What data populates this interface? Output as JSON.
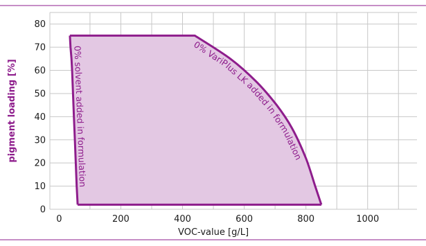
{
  "chart_data": {
    "type": "area",
    "title": "",
    "xlabel": "VOC-value [g/L]",
    "ylabel": "pigment loading [%]",
    "xlim": [
      -30,
      1160
    ],
    "ylim": [
      0,
      85
    ],
    "x_ticks": [
      0,
      200,
      400,
      600,
      800,
      1000
    ],
    "y_ticks": [
      0,
      10,
      20,
      30,
      40,
      50,
      60,
      70,
      80
    ],
    "x_tick_labels": [
      "0",
      "200",
      "400",
      "600",
      "800",
      "1000"
    ],
    "y_tick_labels": [
      "0",
      "10",
      "20",
      "30",
      "40",
      "50",
      "60",
      "70",
      "80"
    ],
    "grid": true,
    "series": [
      {
        "name": "0% solvent added in formulation",
        "x": [
          60,
          57,
          54,
          51,
          48,
          45,
          42,
          40,
          37,
          35
        ],
        "y": [
          2,
          10,
          20,
          30,
          40,
          50,
          60,
          65,
          70,
          75
        ]
      },
      {
        "name": "0% VariPlus LK added in formulation",
        "x": [
          35,
          440,
          555,
          640,
          705,
          755,
          800,
          830,
          850
        ],
        "y": [
          75,
          75,
          65,
          55,
          45,
          35,
          22,
          10,
          2
        ]
      },
      {
        "name": "",
        "x": [
          60,
          850
        ],
        "y": [
          2,
          2
        ]
      }
    ],
    "region_fill": "#e3c8e3",
    "line_color": "#8e1d8c"
  },
  "colors": {
    "accent": "#8e1d8c",
    "fill": "#e3c8e3",
    "grid": "#c7c7c7",
    "text": "#1a1a1a"
  }
}
